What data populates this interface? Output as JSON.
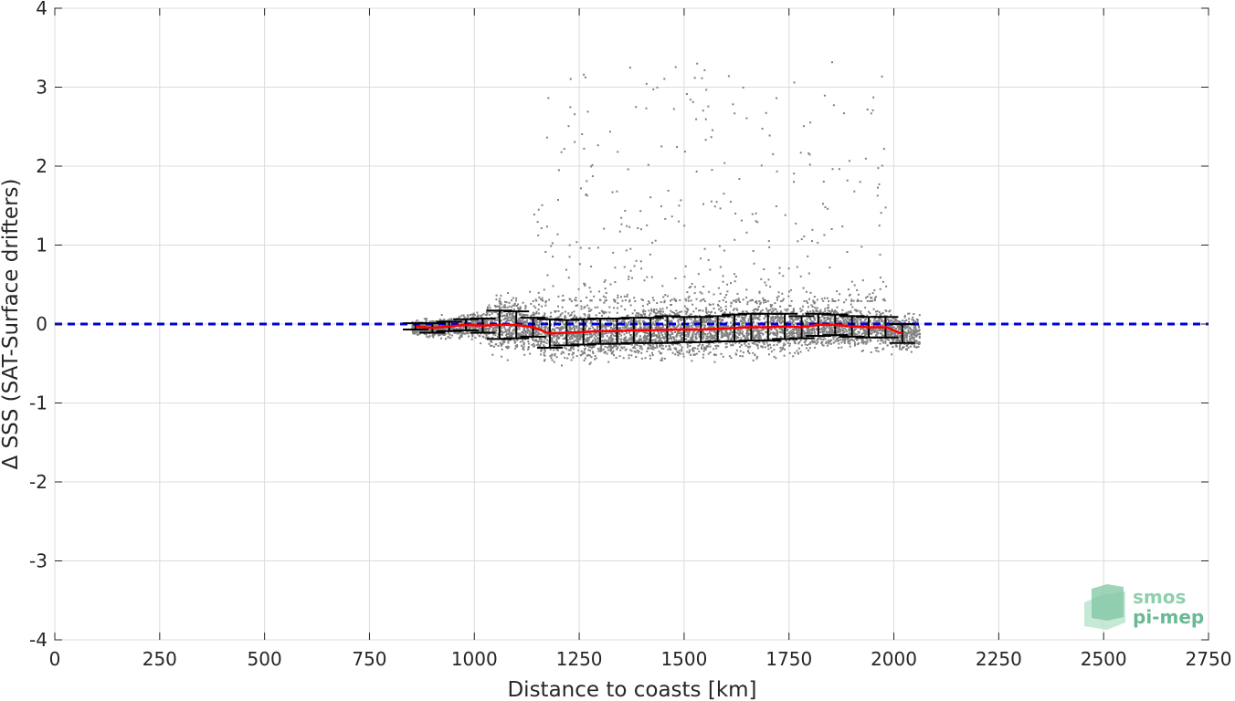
{
  "chart_data": {
    "type": "scatter",
    "xlabel": "Distance to coasts [km]",
    "ylabel": "Δ SSS (SAT-Surface drifters)",
    "xlim": [
      0,
      2750
    ],
    "ylim": [
      -4,
      4
    ],
    "x_ticks": [
      "0",
      "250",
      "500",
      "750",
      "1000",
      "1250",
      "1500",
      "1750",
      "2000",
      "2250",
      "2500",
      "2750"
    ],
    "y_ticks": [
      "4",
      "3",
      "2",
      "1",
      "0",
      "-1",
      "-2",
      "-3",
      "-4"
    ],
    "grid": true,
    "reference_line": {
      "y": 0,
      "style": "dashed",
      "color": "#0000dd"
    },
    "colors": {
      "scatter": "#808080",
      "mean": "#ff0000",
      "errorbar": "#000000"
    },
    "series": [
      {
        "kind": "binned_mean_with_std",
        "x": [
          860,
          900,
          940,
          980,
          1020,
          1060,
          1100,
          1140,
          1180,
          1220,
          1260,
          1300,
          1340,
          1380,
          1420,
          1460,
          1500,
          1540,
          1580,
          1620,
          1660,
          1700,
          1740,
          1780,
          1820,
          1860,
          1900,
          1940,
          1980,
          2020
        ],
        "mean": [
          -0.03,
          -0.05,
          -0.03,
          -0.01,
          -0.02,
          -0.01,
          -0.01,
          -0.04,
          -0.12,
          -0.11,
          -0.1,
          -0.09,
          -0.09,
          -0.08,
          -0.08,
          -0.07,
          -0.07,
          -0.07,
          -0.06,
          -0.05,
          -0.04,
          -0.04,
          -0.03,
          -0.04,
          -0.01,
          -0.01,
          -0.03,
          -0.04,
          -0.04,
          -0.12
        ],
        "std": [
          0.04,
          0.06,
          0.06,
          0.07,
          0.09,
          0.18,
          0.17,
          0.12,
          0.18,
          0.16,
          0.16,
          0.16,
          0.16,
          0.16,
          0.16,
          0.17,
          0.16,
          0.16,
          0.16,
          0.17,
          0.17,
          0.17,
          0.16,
          0.14,
          0.14,
          0.13,
          0.13,
          0.13,
          0.13,
          0.12
        ]
      },
      {
        "kind": "raw_points",
        "x_range": [
          850,
          2060
        ],
        "y_typical_range": [
          -0.6,
          0.4
        ],
        "max_outlier": 3.4
      }
    ]
  },
  "logo": {
    "line1": "smos",
    "line2": "pi-mep"
  }
}
